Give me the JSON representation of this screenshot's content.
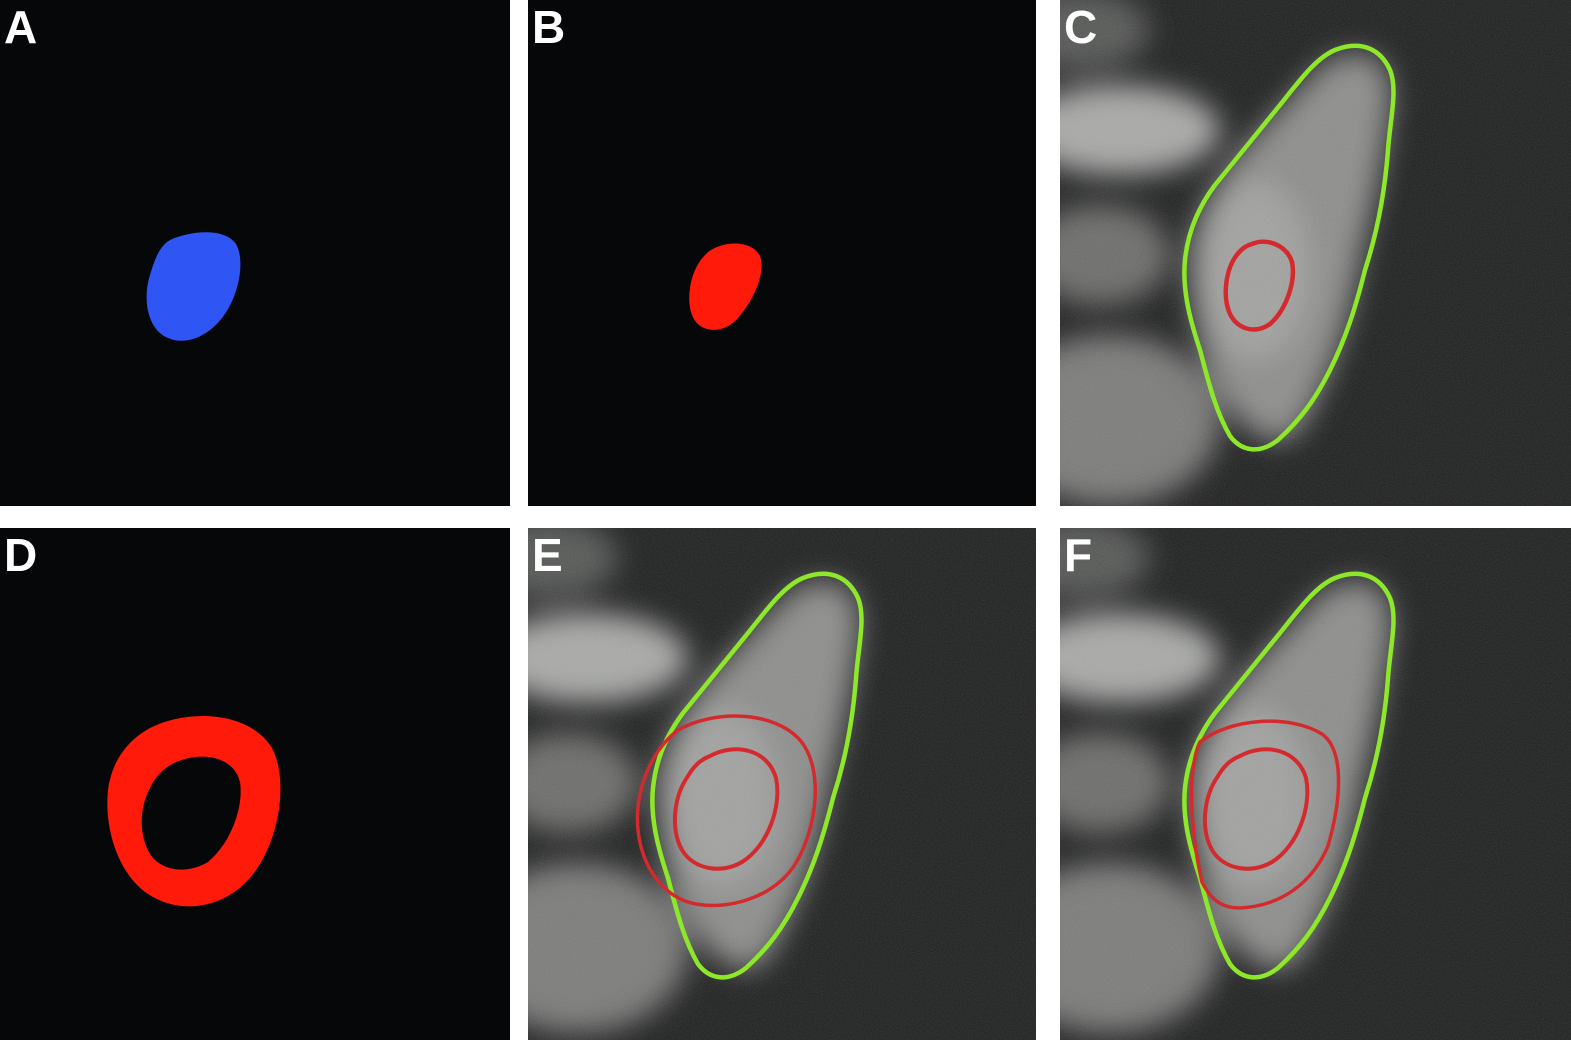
{
  "panels": {
    "a": {
      "label": "A"
    },
    "b": {
      "label": "B"
    },
    "c": {
      "label": "C"
    },
    "d": {
      "label": "D"
    },
    "e": {
      "label": "E"
    },
    "f": {
      "label": "F"
    }
  },
  "colors": {
    "background": "#060708",
    "nucleus_blue": "#2f56f5",
    "nucleus_red": "#ff1a0a",
    "ring_red": "#ff1a0a",
    "cell_outline": "#8ee82a",
    "nuclear_outline": "#d42a2e",
    "gutter": "#ffffff"
  }
}
